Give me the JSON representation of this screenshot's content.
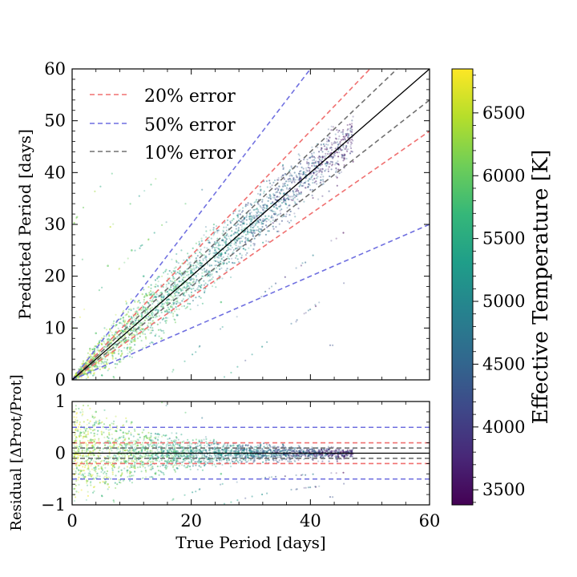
{
  "chart_data": [
    {
      "type": "scatter",
      "panel": "main",
      "xlabel": "",
      "ylabel": "Predicted Period [days]",
      "xlim": [
        0,
        60
      ],
      "ylim": [
        0,
        60
      ],
      "xticks": [
        0,
        20,
        40,
        60
      ],
      "yticks": [
        0,
        10,
        20,
        30,
        40,
        50,
        60
      ],
      "xtick_labels": [
        "",
        "",
        "",
        ""
      ],
      "ytick_labels": [
        "0",
        "10",
        "20",
        "30",
        "40",
        "50",
        "60"
      ],
      "grid": false,
      "legend_position": "top-left",
      "reference_lines": [
        {
          "name": "20% error",
          "color": "#f07070",
          "slopes": [
            1.2,
            0.8
          ]
        },
        {
          "name": "50% error",
          "color": "#6f6fe0",
          "slopes": [
            1.5,
            0.5
          ]
        },
        {
          "name": "10% error",
          "color": "#707070",
          "slopes": [
            1.1,
            0.9
          ]
        }
      ],
      "identity_line": {
        "color": "#000000",
        "slope": 1.0
      },
      "scatter_sample": [
        {
          "x": 2,
          "y": 3,
          "t": 6200
        },
        {
          "x": 3,
          "y": 6,
          "t": 6000
        },
        {
          "x": 4,
          "y": 9,
          "t": 5900
        },
        {
          "x": 5,
          "y": 4,
          "t": 6100
        },
        {
          "x": 6,
          "y": 7,
          "t": 5800
        },
        {
          "x": 8,
          "y": 11,
          "t": 5700
        },
        {
          "x": 10,
          "y": 12,
          "t": 5600
        },
        {
          "x": 12,
          "y": 14,
          "t": 5500
        },
        {
          "x": 14,
          "y": 16,
          "t": 5400
        },
        {
          "x": 16,
          "y": 17,
          "t": 5300
        },
        {
          "x": 18,
          "y": 19,
          "t": 5200
        },
        {
          "x": 20,
          "y": 21,
          "t": 5100
        },
        {
          "x": 22,
          "y": 22,
          "t": 5000
        },
        {
          "x": 24,
          "y": 25,
          "t": 4900
        },
        {
          "x": 26,
          "y": 26,
          "t": 4800
        },
        {
          "x": 28,
          "y": 28,
          "t": 4700
        },
        {
          "x": 30,
          "y": 30,
          "t": 4600
        },
        {
          "x": 32,
          "y": 32,
          "t": 4500
        },
        {
          "x": 34,
          "y": 34,
          "t": 4400
        },
        {
          "x": 36,
          "y": 36,
          "t": 4300
        },
        {
          "x": 38,
          "y": 38,
          "t": 4200
        },
        {
          "x": 40,
          "y": 40,
          "t": 4100
        },
        {
          "x": 42,
          "y": 42,
          "t": 4000
        },
        {
          "x": 44,
          "y": 44,
          "t": 4000
        },
        {
          "x": 46,
          "y": 46,
          "t": 3900
        },
        {
          "x": 10,
          "y": 25,
          "t": 5900
        },
        {
          "x": 6,
          "y": 22,
          "t": 6000
        },
        {
          "x": 15,
          "y": 8,
          "t": 6100
        },
        {
          "x": 25,
          "y": 15,
          "t": 5800
        },
        {
          "x": 12,
          "y": 20,
          "t": 5500
        }
      ]
    },
    {
      "type": "scatter",
      "panel": "residual",
      "xlabel": "True Period [days]",
      "ylabel": "Residual [ΔProt/Prot]",
      "xlim": [
        0,
        60
      ],
      "ylim": [
        -1,
        1
      ],
      "xticks": [
        0,
        20,
        40,
        60
      ],
      "yticks": [
        -1,
        0,
        1
      ],
      "xtick_labels": [
        "0",
        "20",
        "40",
        "60"
      ],
      "ytick_labels": [
        "−1",
        "0",
        "1"
      ],
      "grid": false,
      "reference_lines": [
        {
          "name": "20% error",
          "color": "#f07070",
          "values": [
            0.2,
            -0.2
          ]
        },
        {
          "name": "50% error",
          "color": "#6f6fe0",
          "values": [
            0.5,
            -0.5
          ]
        },
        {
          "name": "10% error",
          "color": "#707070",
          "values": [
            0.1,
            -0.1
          ]
        }
      ],
      "zero_line": {
        "color": "#000000",
        "value": 0
      },
      "scatter_sample": [
        {
          "x": 2,
          "y": 0.5,
          "t": 6200
        },
        {
          "x": 4,
          "y": 0.8,
          "t": 6000
        },
        {
          "x": 5,
          "y": -0.3,
          "t": 6100
        },
        {
          "x": 8,
          "y": 0.3,
          "t": 5700
        },
        {
          "x": 10,
          "y": 0.6,
          "t": 5900
        },
        {
          "x": 12,
          "y": 0.1,
          "t": 5500
        },
        {
          "x": 14,
          "y": -0.4,
          "t": 6100
        },
        {
          "x": 16,
          "y": 0.05,
          "t": 5300
        },
        {
          "x": 20,
          "y": 0.05,
          "t": 5100
        },
        {
          "x": 24,
          "y": 0.02,
          "t": 4900
        },
        {
          "x": 28,
          "y": 0.0,
          "t": 4700
        },
        {
          "x": 32,
          "y": 0.0,
          "t": 4500
        },
        {
          "x": 36,
          "y": 0.0,
          "t": 4300
        },
        {
          "x": 40,
          "y": -0.02,
          "t": 4100
        },
        {
          "x": 44,
          "y": 0.0,
          "t": 4000
        },
        {
          "x": 18,
          "y": -0.5,
          "t": 5800
        },
        {
          "x": 25,
          "y": -0.4,
          "t": 5800
        },
        {
          "x": 6,
          "y": -0.6,
          "t": 6300
        }
      ]
    }
  ],
  "colorbar": {
    "label": "Effective Temperature [K]",
    "range": [
      3380,
      6850
    ],
    "ticks": [
      3500,
      4000,
      4500,
      5000,
      5500,
      6000,
      6500
    ],
    "tick_labels": [
      "3500",
      "4000",
      "4500",
      "5000",
      "5500",
      "6000",
      "6500"
    ],
    "colormap": "viridis",
    "stops": [
      "#440154",
      "#482878",
      "#3e4989",
      "#31688e",
      "#26828e",
      "#1f9e89",
      "#35b779",
      "#6ece58",
      "#b5de2b",
      "#fde725"
    ]
  },
  "legend": {
    "entries": [
      {
        "label": "20% error",
        "color": "#f07070"
      },
      {
        "label": "50% error",
        "color": "#6f6fe0"
      },
      {
        "label": "10% error",
        "color": "#707070"
      }
    ]
  }
}
